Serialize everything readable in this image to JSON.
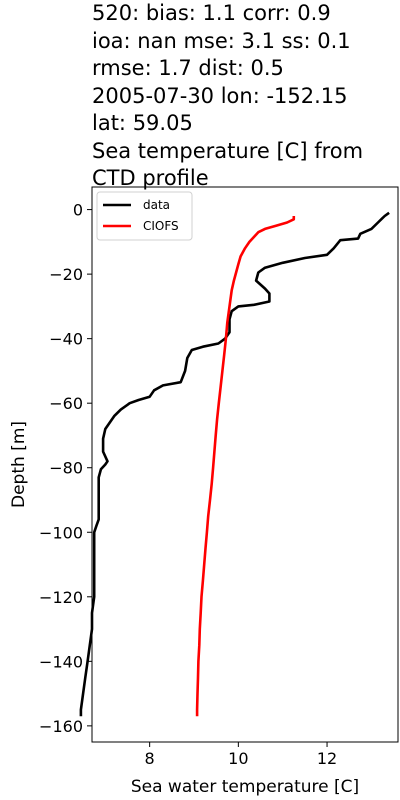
{
  "title_lines": [
    "520: bias: 1.1  corr: 0.9",
    "ioa: nan  mse: 3.1  ss: 0.1",
    "rmse: 1.7  dist: 0.5",
    "2005-07-30 lon: -152.15",
    "lat: 59.05",
    "Sea temperature [C] from",
    "CTD profile"
  ],
  "chart_data": {
    "type": "line",
    "xlabel": "Sea water temperature [C]",
    "ylabel": "Depth [m]",
    "xlim": [
      6.7,
      13.6
    ],
    "ylim": [
      -165,
      7
    ],
    "xticks": [
      8,
      10,
      12
    ],
    "yticks": [
      0,
      -20,
      -40,
      -60,
      -80,
      -100,
      -120,
      -140,
      -160
    ],
    "xtick_labels": [
      "8",
      "10",
      "12"
    ],
    "ytick_labels": [
      "0",
      "−20",
      "−40",
      "−60",
      "−80",
      "−100",
      "−120",
      "−140",
      "−160"
    ],
    "grid": false,
    "legend_position": "top-left",
    "series": [
      {
        "name": "data",
        "color": "#000000",
        "points": [
          [
            13.4,
            -1
          ],
          [
            13.3,
            -2
          ],
          [
            13.15,
            -4
          ],
          [
            13.0,
            -6
          ],
          [
            12.75,
            -7.5
          ],
          [
            12.7,
            -9
          ],
          [
            12.3,
            -9.5
          ],
          [
            12.15,
            -12
          ],
          [
            12.0,
            -14
          ],
          [
            11.5,
            -15
          ],
          [
            11.0,
            -16.5
          ],
          [
            10.6,
            -18
          ],
          [
            10.45,
            -19.5
          ],
          [
            10.4,
            -22
          ],
          [
            10.6,
            -24.5
          ],
          [
            10.7,
            -26
          ],
          [
            10.7,
            -28.5
          ],
          [
            10.35,
            -29.5
          ],
          [
            10.0,
            -30
          ],
          [
            9.85,
            -31.5
          ],
          [
            9.8,
            -34
          ],
          [
            9.8,
            -38
          ],
          [
            9.7,
            -40
          ],
          [
            9.55,
            -41.5
          ],
          [
            9.2,
            -42.5
          ],
          [
            8.95,
            -43.5
          ],
          [
            8.85,
            -46
          ],
          [
            8.8,
            -50
          ],
          [
            8.7,
            -53.5
          ],
          [
            8.3,
            -54.5
          ],
          [
            8.1,
            -56
          ],
          [
            8.0,
            -58
          ],
          [
            7.75,
            -59
          ],
          [
            7.55,
            -60
          ],
          [
            7.35,
            -62
          ],
          [
            7.2,
            -64
          ],
          [
            7.1,
            -66
          ],
          [
            7.0,
            -68
          ],
          [
            6.95,
            -71
          ],
          [
            6.95,
            -75
          ],
          [
            7.05,
            -78
          ],
          [
            7.0,
            -79
          ],
          [
            6.9,
            -80.5
          ],
          [
            6.85,
            -83
          ],
          [
            6.85,
            -86
          ],
          [
            6.85,
            -90
          ],
          [
            6.85,
            -96
          ],
          [
            6.8,
            -98
          ],
          [
            6.75,
            -100
          ],
          [
            6.75,
            -105
          ],
          [
            6.75,
            -110
          ],
          [
            6.75,
            -115
          ],
          [
            6.75,
            -120
          ],
          [
            6.7,
            -125
          ],
          [
            6.7,
            -130
          ],
          [
            6.65,
            -135
          ],
          [
            6.6,
            -140
          ],
          [
            6.55,
            -145
          ],
          [
            6.5,
            -150
          ],
          [
            6.45,
            -155
          ],
          [
            6.45,
            -157
          ]
        ]
      },
      {
        "name": "CIOFS",
        "color": "#ff0000",
        "points": [
          [
            11.25,
            -2
          ],
          [
            11.25,
            -3
          ],
          [
            11.1,
            -4
          ],
          [
            10.85,
            -5
          ],
          [
            10.6,
            -6
          ],
          [
            10.45,
            -7
          ],
          [
            10.35,
            -8.5
          ],
          [
            10.25,
            -10
          ],
          [
            10.15,
            -12
          ],
          [
            10.05,
            -14.5
          ],
          [
            10.0,
            -17
          ],
          [
            9.95,
            -19.5
          ],
          [
            9.9,
            -22
          ],
          [
            9.85,
            -25
          ],
          [
            9.8,
            -30
          ],
          [
            9.75,
            -35
          ],
          [
            9.72,
            -40
          ],
          [
            9.68,
            -45
          ],
          [
            9.64,
            -50
          ],
          [
            9.6,
            -55
          ],
          [
            9.56,
            -60
          ],
          [
            9.52,
            -65
          ],
          [
            9.49,
            -70
          ],
          [
            9.46,
            -75
          ],
          [
            9.43,
            -80
          ],
          [
            9.4,
            -85
          ],
          [
            9.36,
            -90
          ],
          [
            9.32,
            -95
          ],
          [
            9.29,
            -100
          ],
          [
            9.26,
            -105
          ],
          [
            9.23,
            -110
          ],
          [
            9.2,
            -115
          ],
          [
            9.17,
            -120
          ],
          [
            9.15,
            -125
          ],
          [
            9.13,
            -130
          ],
          [
            9.12,
            -135
          ],
          [
            9.1,
            -140
          ],
          [
            9.09,
            -145
          ],
          [
            9.08,
            -150
          ],
          [
            9.07,
            -155
          ],
          [
            9.07,
            -157
          ]
        ]
      }
    ]
  }
}
